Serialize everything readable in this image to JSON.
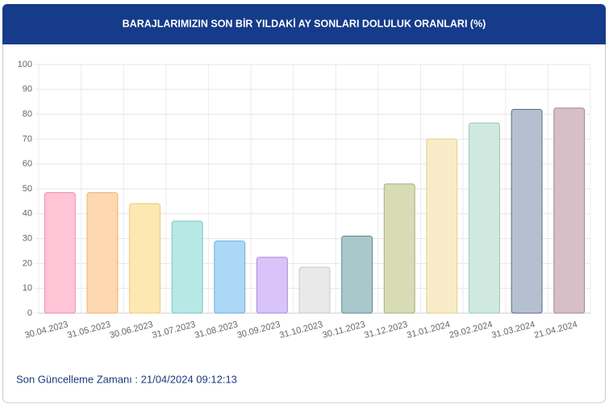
{
  "chart_data": {
    "type": "bar",
    "title": "BARAJLARIMIZIN SON BİR YILDAKİ AY SONLARI DOLULUK ORANLARI (%)",
    "categories": [
      "30.04.2023",
      "31.05.2023",
      "30.06.2023",
      "31.07.2023",
      "31.08.2023",
      "30.09.2023",
      "31.10.2023",
      "30.11.2023",
      "31.12.2023",
      "31.01.2024",
      "29.02.2024",
      "31.03.2024",
      "21.04.2024"
    ],
    "values": [
      48.5,
      48.5,
      44,
      37,
      29,
      22.5,
      18.5,
      31,
      52,
      70,
      76.5,
      82,
      82.5
    ],
    "colors": [
      "#ffc4d6",
      "#fdd8b0",
      "#fde8b4",
      "#b8e8e6",
      "#acd8f6",
      "#d8c4f8",
      "#e9e9e9",
      "#a9c8cc",
      "#d8dcb4",
      "#f8ecc8",
      "#cfe9e1",
      "#b4c0d0",
      "#d8bfc7"
    ],
    "border_colors": [
      "#f08aa8",
      "#f0b070",
      "#f0c870",
      "#70c8c4",
      "#6aaee0",
      "#a888e0",
      "#c8c8c8",
      "#5f8a90",
      "#a8ae78",
      "#e8cc88",
      "#98c8b8",
      "#5a6a80",
      "#a08890"
    ],
    "ylim": [
      0,
      100
    ],
    "yticks": [
      0,
      10,
      20,
      30,
      40,
      50,
      60,
      70,
      80,
      90,
      100
    ],
    "grid": true
  },
  "footer": {
    "text": "Son Güncelleme Zamanı : 21/04/2024 09:12:13"
  }
}
